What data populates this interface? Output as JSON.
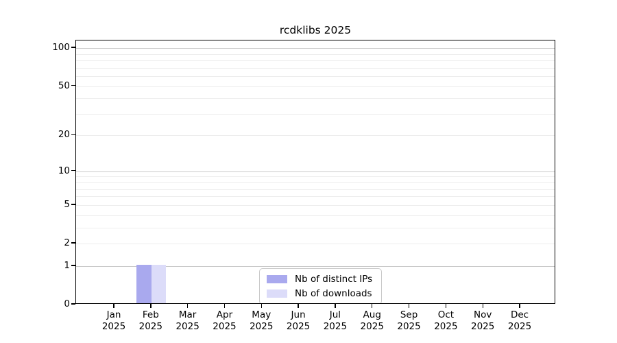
{
  "chart_data": {
    "type": "bar",
    "title": "rcdklibs 2025",
    "x": {
      "categories": [
        "Jan",
        "Feb",
        "Mar",
        "Apr",
        "May",
        "Jun",
        "Jul",
        "Aug",
        "Sep",
        "Oct",
        "Nov",
        "Dec"
      ],
      "year": "2025"
    },
    "y": {
      "scale": "log1p",
      "ticks": [
        100,
        50,
        20,
        10,
        5,
        2,
        1,
        0
      ],
      "lim": [
        0,
        115
      ],
      "grid_major": [
        1,
        10,
        100
      ],
      "grid_minor": [
        2,
        3,
        4,
        5,
        6,
        7,
        8,
        9,
        20,
        30,
        40,
        50,
        60,
        70,
        80,
        90
      ]
    },
    "series": [
      {
        "name": "Nb of distinct IPs",
        "color": "#a9a9ee",
        "values": [
          0,
          1,
          0,
          0,
          0,
          0,
          0,
          0,
          0,
          0,
          0,
          0
        ]
      },
      {
        "name": "Nb of downloads",
        "color": "#dcdcf9",
        "values": [
          0,
          1,
          0,
          0,
          0,
          0,
          0,
          0,
          0,
          0,
          0,
          0
        ]
      }
    ],
    "legend": {
      "position": "bottom-center"
    },
    "colors": {
      "spine": "#000000",
      "grid_major": "#c9c9c9",
      "grid_minor": "#ededed",
      "text": "#000000",
      "legend_border": "#c9c9c9"
    }
  }
}
